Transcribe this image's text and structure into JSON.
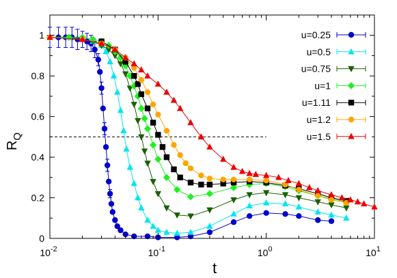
{
  "chart_data": {
    "type": "line",
    "title": "",
    "xlabel": "t",
    "ylabel": "R",
    "ylabel_subscript": "Q",
    "xscale": "log",
    "xlim": [
      0.01,
      10
    ],
    "ylim": [
      0,
      1.1
    ],
    "x_ticks": [
      {
        "base": "10",
        "exp": "-2"
      },
      {
        "base": "10",
        "exp": "-1"
      },
      {
        "base": "10",
        "exp": "0"
      },
      {
        "base": "10",
        "exp": "1"
      }
    ],
    "y_ticks": [
      "0",
      "0.2",
      "0.4",
      "0.6",
      "0.8",
      "1"
    ],
    "reference_line": {
      "y": 0.5,
      "x_range": [
        0.01,
        1.0
      ],
      "style": "dashed"
    },
    "legend_position": "top-right",
    "grid": false,
    "series": [
      {
        "name": "u=0.25",
        "color": "#0000cc",
        "marker": "circle",
        "points": [
          [
            0.01,
            0.99
          ],
          [
            0.012,
            0.99
          ],
          [
            0.014,
            0.99
          ],
          [
            0.016,
            0.99
          ],
          [
            0.018,
            0.98
          ],
          [
            0.02,
            0.98
          ],
          [
            0.022,
            0.97
          ],
          [
            0.024,
            0.96
          ],
          [
            0.026,
            0.93
          ],
          [
            0.028,
            0.88
          ],
          [
            0.029,
            0.82
          ],
          [
            0.03,
            0.74
          ],
          [
            0.031,
            0.64
          ],
          [
            0.032,
            0.54
          ],
          [
            0.033,
            0.45
          ],
          [
            0.034,
            0.36
          ],
          [
            0.035,
            0.28
          ],
          [
            0.036,
            0.22
          ],
          [
            0.037,
            0.17
          ],
          [
            0.038,
            0.13
          ],
          [
            0.04,
            0.09
          ],
          [
            0.042,
            0.06
          ],
          [
            0.045,
            0.04
          ],
          [
            0.05,
            0.02
          ],
          [
            0.06,
            0.01
          ],
          [
            0.08,
            0.01
          ],
          [
            0.1,
            0.005
          ],
          [
            0.15,
            0.005
          ],
          [
            0.2,
            0.01
          ],
          [
            0.3,
            0.03
          ],
          [
            0.5,
            0.08
          ],
          [
            0.7,
            0.11
          ],
          [
            1.0,
            0.125
          ],
          [
            1.5,
            0.12
          ],
          [
            2.0,
            0.11
          ],
          [
            3.0,
            0.09
          ],
          [
            4.0,
            0.085
          ]
        ],
        "error_bars": [
          [
            0.01,
            0.05
          ],
          [
            0.012,
            0.05
          ],
          [
            0.014,
            0.05
          ],
          [
            0.016,
            0.05
          ],
          [
            0.018,
            0.05
          ],
          [
            0.02,
            0.04
          ],
          [
            0.022,
            0.04
          ],
          [
            0.024,
            0.04
          ],
          [
            0.026,
            0.04
          ],
          [
            0.028,
            0.03
          ],
          [
            0.03,
            0.03
          ],
          [
            0.032,
            0.03
          ],
          [
            0.034,
            0.03
          ],
          [
            0.036,
            0.02
          ]
        ]
      },
      {
        "name": "u=0.5",
        "color": "#00e5ee",
        "marker": "triangle-up",
        "points": [
          [
            0.01,
            0.99
          ],
          [
            0.015,
            0.99
          ],
          [
            0.02,
            0.98
          ],
          [
            0.025,
            0.97
          ],
          [
            0.03,
            0.95
          ],
          [
            0.033,
            0.92
          ],
          [
            0.036,
            0.87
          ],
          [
            0.039,
            0.8
          ],
          [
            0.042,
            0.72
          ],
          [
            0.045,
            0.63
          ],
          [
            0.048,
            0.53
          ],
          [
            0.051,
            0.44
          ],
          [
            0.055,
            0.35
          ],
          [
            0.06,
            0.27
          ],
          [
            0.065,
            0.2
          ],
          [
            0.07,
            0.15
          ],
          [
            0.08,
            0.09
          ],
          [
            0.09,
            0.06
          ],
          [
            0.1,
            0.04
          ],
          [
            0.12,
            0.03
          ],
          [
            0.15,
            0.025
          ],
          [
            0.2,
            0.03
          ],
          [
            0.3,
            0.06
          ],
          [
            0.5,
            0.12
          ],
          [
            0.7,
            0.16
          ],
          [
            1.0,
            0.175
          ],
          [
            1.5,
            0.17
          ],
          [
            2.0,
            0.155
          ],
          [
            3.0,
            0.13
          ],
          [
            4.0,
            0.115
          ],
          [
            5.5,
            0.1
          ]
        ]
      },
      {
        "name": "u=0.75",
        "color": "#1a5f00",
        "marker": "triangle-down",
        "points": [
          [
            0.01,
            0.99
          ],
          [
            0.015,
            0.99
          ],
          [
            0.02,
            0.98
          ],
          [
            0.025,
            0.97
          ],
          [
            0.03,
            0.95
          ],
          [
            0.035,
            0.93
          ],
          [
            0.04,
            0.9
          ],
          [
            0.045,
            0.86
          ],
          [
            0.05,
            0.81
          ],
          [
            0.055,
            0.74
          ],
          [
            0.06,
            0.66
          ],
          [
            0.065,
            0.58
          ],
          [
            0.07,
            0.5
          ],
          [
            0.075,
            0.43
          ],
          [
            0.08,
            0.37
          ],
          [
            0.09,
            0.28
          ],
          [
            0.1,
            0.22
          ],
          [
            0.12,
            0.15
          ],
          [
            0.15,
            0.115
          ],
          [
            0.2,
            0.11
          ],
          [
            0.3,
            0.14
          ],
          [
            0.5,
            0.19
          ],
          [
            0.7,
            0.215
          ],
          [
            1.0,
            0.225
          ],
          [
            1.5,
            0.215
          ],
          [
            2.0,
            0.2
          ],
          [
            3.0,
            0.18
          ],
          [
            4.0,
            0.165
          ],
          [
            5.5,
            0.15
          ]
        ]
      },
      {
        "name": "u=1",
        "color": "#22ee22",
        "marker": "diamond",
        "points": [
          [
            0.01,
            0.99
          ],
          [
            0.015,
            0.99
          ],
          [
            0.02,
            0.99
          ],
          [
            0.025,
            0.98
          ],
          [
            0.03,
            0.97
          ],
          [
            0.035,
            0.95
          ],
          [
            0.04,
            0.92
          ],
          [
            0.045,
            0.89
          ],
          [
            0.05,
            0.85
          ],
          [
            0.055,
            0.8
          ],
          [
            0.06,
            0.75
          ],
          [
            0.065,
            0.7
          ],
          [
            0.07,
            0.64
          ],
          [
            0.075,
            0.59
          ],
          [
            0.08,
            0.54
          ],
          [
            0.09,
            0.46
          ],
          [
            0.1,
            0.39
          ],
          [
            0.12,
            0.3
          ],
          [
            0.15,
            0.24
          ],
          [
            0.2,
            0.205
          ],
          [
            0.3,
            0.22
          ],
          [
            0.5,
            0.25
          ],
          [
            0.7,
            0.265
          ],
          [
            1.0,
            0.27
          ],
          [
            1.5,
            0.255
          ],
          [
            2.0,
            0.235
          ],
          [
            3.0,
            0.21
          ],
          [
            4.0,
            0.195
          ],
          [
            5.5,
            0.18
          ]
        ]
      },
      {
        "name": "u=1.11",
        "color": "#000000",
        "marker": "square",
        "points": [
          [
            0.03,
            0.97
          ],
          [
            0.04,
            0.93
          ],
          [
            0.05,
            0.87
          ],
          [
            0.06,
            0.8
          ],
          [
            0.065,
            0.76
          ],
          [
            0.07,
            0.71
          ],
          [
            0.08,
            0.64
          ],
          [
            0.09,
            0.57
          ],
          [
            0.1,
            0.51
          ],
          [
            0.11,
            0.45
          ],
          [
            0.12,
            0.4
          ],
          [
            0.14,
            0.34
          ],
          [
            0.16,
            0.3
          ],
          [
            0.2,
            0.275
          ],
          [
            0.25,
            0.265
          ],
          [
            0.3,
            0.265
          ],
          [
            0.4,
            0.27
          ],
          [
            0.5,
            0.275
          ],
          [
            0.7,
            0.28
          ],
          [
            1.0,
            0.275
          ],
          [
            1.5,
            0.26
          ],
          [
            2.0,
            0.245
          ],
          [
            3.0,
            0.22
          ],
          [
            4.0,
            0.2
          ],
          [
            5.5,
            0.185
          ]
        ]
      },
      {
        "name": "u=1.2",
        "color": "#ffa500",
        "marker": "circle",
        "points": [
          [
            0.01,
            0.99
          ],
          [
            0.02,
            0.98
          ],
          [
            0.03,
            0.96
          ],
          [
            0.04,
            0.93
          ],
          [
            0.05,
            0.89
          ],
          [
            0.06,
            0.84
          ],
          [
            0.07,
            0.78
          ],
          [
            0.08,
            0.72
          ],
          [
            0.09,
            0.66
          ],
          [
            0.1,
            0.61
          ],
          [
            0.12,
            0.53
          ],
          [
            0.14,
            0.46
          ],
          [
            0.16,
            0.41
          ],
          [
            0.18,
            0.37
          ],
          [
            0.2,
            0.345
          ],
          [
            0.25,
            0.31
          ],
          [
            0.3,
            0.295
          ],
          [
            0.4,
            0.29
          ],
          [
            0.5,
            0.29
          ],
          [
            0.7,
            0.29
          ],
          [
            1.0,
            0.285
          ],
          [
            1.5,
            0.265
          ],
          [
            2.0,
            0.24
          ],
          [
            3.0,
            0.21
          ],
          [
            4.0,
            0.19
          ],
          [
            5.5,
            0.175
          ]
        ]
      },
      {
        "name": "u=1.5",
        "color": "#ee0000",
        "marker": "triangle-up",
        "points": [
          [
            0.01,
            0.99
          ],
          [
            0.02,
            0.98
          ],
          [
            0.03,
            0.96
          ],
          [
            0.04,
            0.93
          ],
          [
            0.05,
            0.89
          ],
          [
            0.06,
            0.86
          ],
          [
            0.07,
            0.83
          ],
          [
            0.08,
            0.8
          ],
          [
            0.1,
            0.76
          ],
          [
            0.12,
            0.72
          ],
          [
            0.14,
            0.68
          ],
          [
            0.16,
            0.64
          ],
          [
            0.2,
            0.57
          ],
          [
            0.25,
            0.5
          ],
          [
            0.3,
            0.45
          ],
          [
            0.4,
            0.39
          ],
          [
            0.5,
            0.35
          ],
          [
            0.6,
            0.33
          ],
          [
            0.7,
            0.32
          ],
          [
            0.8,
            0.315
          ],
          [
            1.0,
            0.31
          ],
          [
            1.3,
            0.3
          ],
          [
            1.6,
            0.285
          ],
          [
            2.0,
            0.27
          ],
          [
            2.5,
            0.25
          ],
          [
            3.0,
            0.235
          ],
          [
            4.0,
            0.215
          ],
          [
            5.0,
            0.2
          ],
          [
            6.0,
            0.19
          ],
          [
            7.0,
            0.18
          ],
          [
            8.0,
            0.17
          ],
          [
            10.0,
            0.155
          ]
        ]
      }
    ]
  }
}
